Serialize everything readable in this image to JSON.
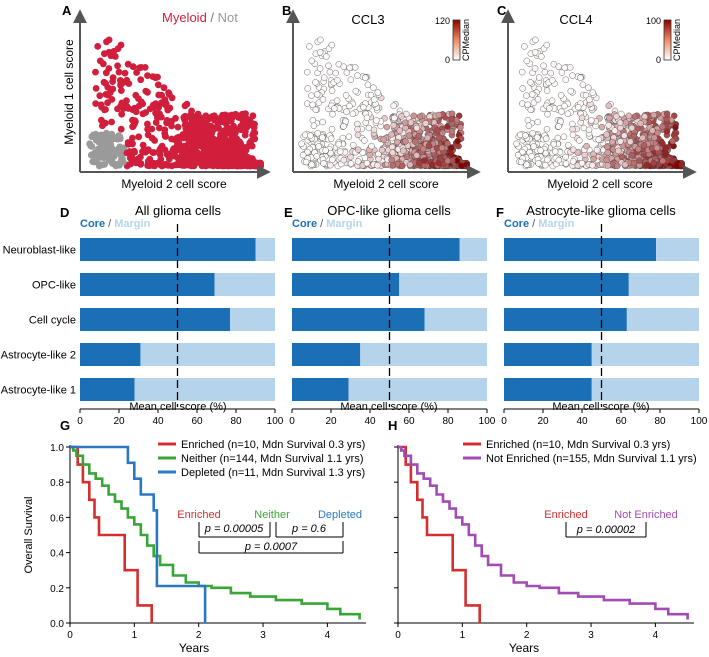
{
  "colors": {
    "myeloid": "#d01f3c",
    "not": "#9a9a9a",
    "core": "#1b6fb4",
    "margin": "#b5d4ec",
    "enriched": "#d32f2f",
    "neither": "#3aa537",
    "depleted": "#2a78c2",
    "not_enriched": "#a24bb4"
  },
  "panels": {
    "A": {
      "letter": "A",
      "legend": {
        "myeloid": "Myeloid",
        "sep": " / ",
        "not": "Not"
      },
      "xlabel": "Myeloid 2 cell score",
      "ylabel": "Myeloid 1 cell score"
    },
    "B": {
      "letter": "B",
      "title": "CCL3",
      "xlabel": "Myeloid 2 cell score",
      "colorbar": {
        "max": "120",
        "min": "0",
        "label": "CPMedian"
      }
    },
    "C": {
      "letter": "C",
      "title": "CCL4",
      "xlabel": "Myeloid 2 cell score",
      "colorbar": {
        "max": "100",
        "min": "0",
        "label": "CPMedian"
      }
    },
    "D": {
      "letter": "D",
      "title": "All glioma cells"
    },
    "E": {
      "letter": "E",
      "title": "OPC-like glioma cells"
    },
    "F": {
      "letter": "F",
      "title": "Astrocyte-like glioma cells"
    },
    "G": {
      "letter": "G",
      "xlabel": "Years",
      "ylabel": "Overall Survival",
      "legend": [
        "Enriched (n=10, Mdn Survival 0.3 yrs)",
        "Neither (n=144, Mdn Survival 1.1 yrs)",
        "Depleted (n=11, Mdn Survival 1.3 yrs)"
      ],
      "groups": {
        "enriched": "Enriched",
        "neither": "Neither",
        "depleted": "Depleted"
      },
      "pvals": {
        "p_en_ne": "p = 0.00005",
        "p_ne_de": "p = 0.6",
        "p_en_de": "p = 0.0007"
      }
    },
    "H": {
      "letter": "H",
      "xlabel": "Years",
      "legend": [
        "Enriched (n=10, Mdn Survival 0.3 yrs)",
        "Not Enriched (n=155, Mdn Survival 1.1 yrs)"
      ],
      "groups": {
        "enriched": "Enriched",
        "not_enriched": "Not Enriched"
      },
      "pvals": {
        "p_en_nen": "p = 0.00002"
      }
    }
  },
  "bar_common": {
    "legend_core": "Core",
    "legend_sep": " / ",
    "legend_margin": "Margin",
    "xlabel": "Mean cell score (%)"
  },
  "chart_data": [
    {
      "panel": "D",
      "type": "bar",
      "orientation": "horizontal",
      "stacked": true,
      "title": "All glioma cells",
      "xlabel": "Mean cell score (%)",
      "xlim": [
        0,
        100
      ],
      "xticks": [
        0,
        20,
        40,
        60,
        80,
        100
      ],
      "reference_line": 50,
      "categories": [
        "Neuroblast-like",
        "OPC-like",
        "Cell cycle",
        "Astrocyte-like 2",
        "Astrocyte-like 1"
      ],
      "series": [
        {
          "name": "Core",
          "values": [
            90,
            69,
            77,
            31,
            28
          ]
        },
        {
          "name": "Margin",
          "values": [
            10,
            31,
            23,
            69,
            72
          ]
        }
      ]
    },
    {
      "panel": "E",
      "type": "bar",
      "orientation": "horizontal",
      "stacked": true,
      "title": "OPC-like glioma cells",
      "xlabel": "Mean cell score (%)",
      "xlim": [
        0,
        100
      ],
      "xticks": [
        0,
        20,
        40,
        60,
        80,
        100
      ],
      "reference_line": 50,
      "categories": [
        "Neuroblast-like",
        "OPC-like",
        "Cell cycle",
        "Astrocyte-like 2",
        "Astrocyte-like 1"
      ],
      "series": [
        {
          "name": "Core",
          "values": [
            86,
            55,
            68,
            35,
            29
          ]
        },
        {
          "name": "Margin",
          "values": [
            14,
            45,
            32,
            65,
            71
          ]
        }
      ]
    },
    {
      "panel": "F",
      "type": "bar",
      "orientation": "horizontal",
      "stacked": true,
      "title": "Astrocyte-like glioma cells",
      "xlabel": "Mean cell score (%)",
      "xlim": [
        0,
        100
      ],
      "xticks": [
        0,
        20,
        40,
        60,
        80,
        100
      ],
      "reference_line": 50,
      "categories": [
        "Neuroblast-like",
        "OPC-like",
        "Cell cycle",
        "Astrocyte-like 2",
        "Astrocyte-like 1"
      ],
      "series": [
        {
          "name": "Core",
          "values": [
            78,
            64,
            63,
            45,
            45
          ]
        },
        {
          "name": "Margin",
          "values": [
            22,
            36,
            37,
            55,
            55
          ]
        }
      ]
    },
    {
      "panel": "G",
      "type": "line",
      "subtype": "kaplan-meier",
      "xlabel": "Years",
      "ylabel": "Overall Survival",
      "xlim": [
        0,
        4.6
      ],
      "ylim": [
        0,
        1.0
      ],
      "xticks": [
        0,
        1,
        2,
        3,
        4
      ],
      "yticks": [
        0.0,
        0.2,
        0.4,
        0.6,
        0.8,
        1.0
      ],
      "series": [
        {
          "name": "Enriched (n=10, Mdn Survival 0.3 yrs)",
          "x": [
            0,
            0.12,
            0.2,
            0.3,
            0.38,
            0.45,
            0.85,
            1.05,
            1.27
          ],
          "y": [
            1.0,
            0.9,
            0.8,
            0.7,
            0.6,
            0.5,
            0.3,
            0.1,
            0.0
          ]
        },
        {
          "name": "Neither (n=144, Mdn Survival 1.1 yrs)",
          "x": [
            0,
            0.05,
            0.1,
            0.2,
            0.3,
            0.4,
            0.5,
            0.6,
            0.7,
            0.8,
            0.9,
            1.0,
            1.1,
            1.2,
            1.3,
            1.4,
            1.6,
            1.8,
            2.0,
            2.2,
            2.5,
            2.8,
            3.2,
            3.6,
            4.0,
            4.2,
            4.5
          ],
          "y": [
            1.0,
            0.98,
            0.95,
            0.9,
            0.85,
            0.82,
            0.78,
            0.73,
            0.69,
            0.65,
            0.6,
            0.56,
            0.5,
            0.44,
            0.38,
            0.33,
            0.27,
            0.23,
            0.21,
            0.2,
            0.17,
            0.15,
            0.13,
            0.11,
            0.08,
            0.05,
            0.02
          ]
        },
        {
          "name": "Depleted (n=11, Mdn Survival 1.3 yrs)",
          "x": [
            0,
            0.45,
            0.9,
            1.0,
            1.1,
            1.3,
            1.35,
            2.1
          ],
          "y": [
            1.0,
            1.0,
            0.91,
            0.82,
            0.73,
            0.64,
            0.21,
            0.0
          ]
        }
      ]
    },
    {
      "panel": "H",
      "type": "line",
      "subtype": "kaplan-meier",
      "xlabel": "Years",
      "xlim": [
        0,
        4.6
      ],
      "ylim": [
        0,
        1.0
      ],
      "xticks": [
        0,
        1,
        2,
        3,
        4
      ],
      "yticks": [
        0.0,
        0.2,
        0.4,
        0.6,
        0.8,
        1.0
      ],
      "series": [
        {
          "name": "Enriched (n=10, Mdn Survival 0.3 yrs)",
          "x": [
            0,
            0.12,
            0.2,
            0.3,
            0.38,
            0.45,
            0.85,
            1.05,
            1.27
          ],
          "y": [
            1.0,
            0.9,
            0.8,
            0.7,
            0.6,
            0.5,
            0.3,
            0.1,
            0.0
          ]
        },
        {
          "name": "Not Enriched (n=155, Mdn Survival 1.1 yrs)",
          "x": [
            0,
            0.05,
            0.1,
            0.2,
            0.3,
            0.4,
            0.5,
            0.6,
            0.7,
            0.8,
            0.9,
            1.0,
            1.1,
            1.2,
            1.3,
            1.4,
            1.6,
            1.8,
            2.0,
            2.2,
            2.5,
            2.8,
            3.2,
            3.6,
            4.0,
            4.2,
            4.5
          ],
          "y": [
            1.0,
            0.98,
            0.95,
            0.9,
            0.85,
            0.82,
            0.78,
            0.73,
            0.69,
            0.65,
            0.6,
            0.56,
            0.5,
            0.44,
            0.38,
            0.33,
            0.27,
            0.23,
            0.21,
            0.2,
            0.17,
            0.15,
            0.13,
            0.11,
            0.08,
            0.05,
            0.02
          ]
        }
      ]
    },
    {
      "panel": "A",
      "type": "scatter",
      "xlabel": "Myeloid 2 cell score",
      "ylabel": "Myeloid 1 cell score",
      "series": [
        {
          "name": "Myeloid"
        },
        {
          "name": "Not"
        }
      ]
    },
    {
      "panel": "B",
      "type": "scatter",
      "title": "CCL3",
      "xlabel": "Myeloid 2 cell score",
      "color_scale": {
        "label": "CPMedian",
        "range": [
          0,
          120
        ]
      }
    },
    {
      "panel": "C",
      "type": "scatter",
      "title": "CCL4",
      "xlabel": "Myeloid 2 cell score",
      "color_scale": {
        "label": "CPMedian",
        "range": [
          0,
          100
        ]
      }
    }
  ]
}
